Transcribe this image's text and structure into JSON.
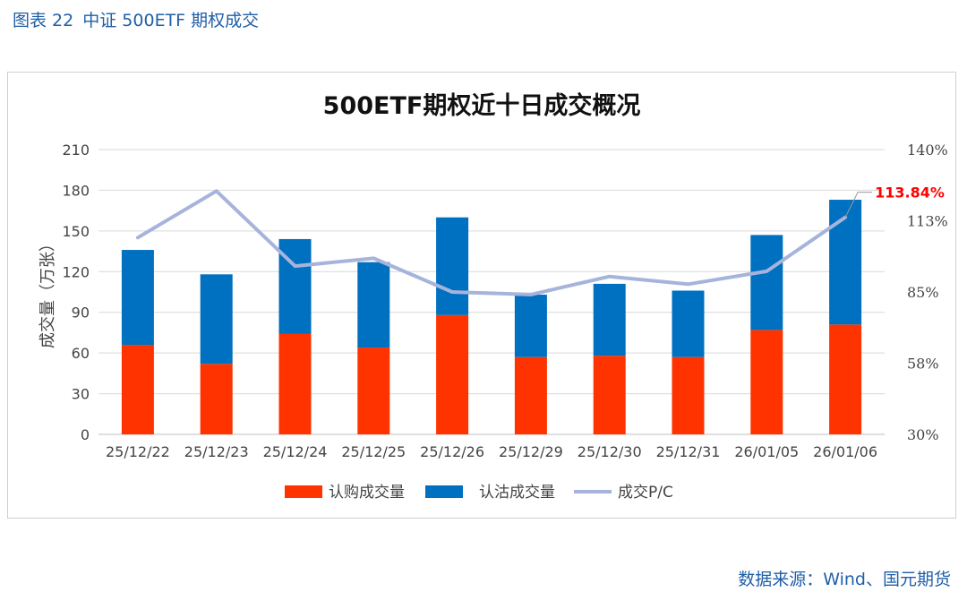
{
  "caption": {
    "label": "图表 22",
    "text": "中证 500ETF 期权成交"
  },
  "source": "数据来源：Wind、国元期货",
  "colors": {
    "call": "#ff3300",
    "put": "#0070c0",
    "pc_line": "#a6b4dc",
    "grid": "#d9d9d9",
    "highlight": "#ff0000"
  },
  "chart_data": {
    "type": "bar",
    "title": "500ETF期权近十日成交概况",
    "ylabel": "成交量（万张）",
    "categories": [
      "25/12/22",
      "25/12/23",
      "25/12/24",
      "25/12/25",
      "25/12/26",
      "25/12/29",
      "25/12/30",
      "25/12/31",
      "26/01/05",
      "26/01/06"
    ],
    "series": [
      {
        "name": "认购成交量",
        "type": "bar",
        "stacked": true,
        "axis": "left",
        "values": [
          66,
          52,
          74,
          64,
          88,
          57,
          58,
          57,
          77,
          81
        ]
      },
      {
        "name": "认沽成交量",
        "type": "bar",
        "stacked": true,
        "axis": "left",
        "values": [
          70,
          66,
          70,
          63,
          72,
          46,
          53,
          49,
          70,
          92
        ]
      },
      {
        "name": "成交P/C",
        "type": "line",
        "axis": "right",
        "values": [
          106,
          124,
          95,
          98,
          85,
          84,
          91,
          88,
          93,
          113.84
        ]
      }
    ],
    "ylim": [
      0,
      210
    ],
    "yticks": [
      "0",
      "30",
      "60",
      "90",
      "120",
      "150",
      "180",
      "210"
    ],
    "y2lim": [
      30,
      140
    ],
    "y2ticks": [
      "30%",
      "58%",
      "85%",
      "113%",
      "140%"
    ],
    "annotation": {
      "index": 9,
      "text": "113.84%"
    },
    "grid": true,
    "legend_position": "bottom"
  }
}
